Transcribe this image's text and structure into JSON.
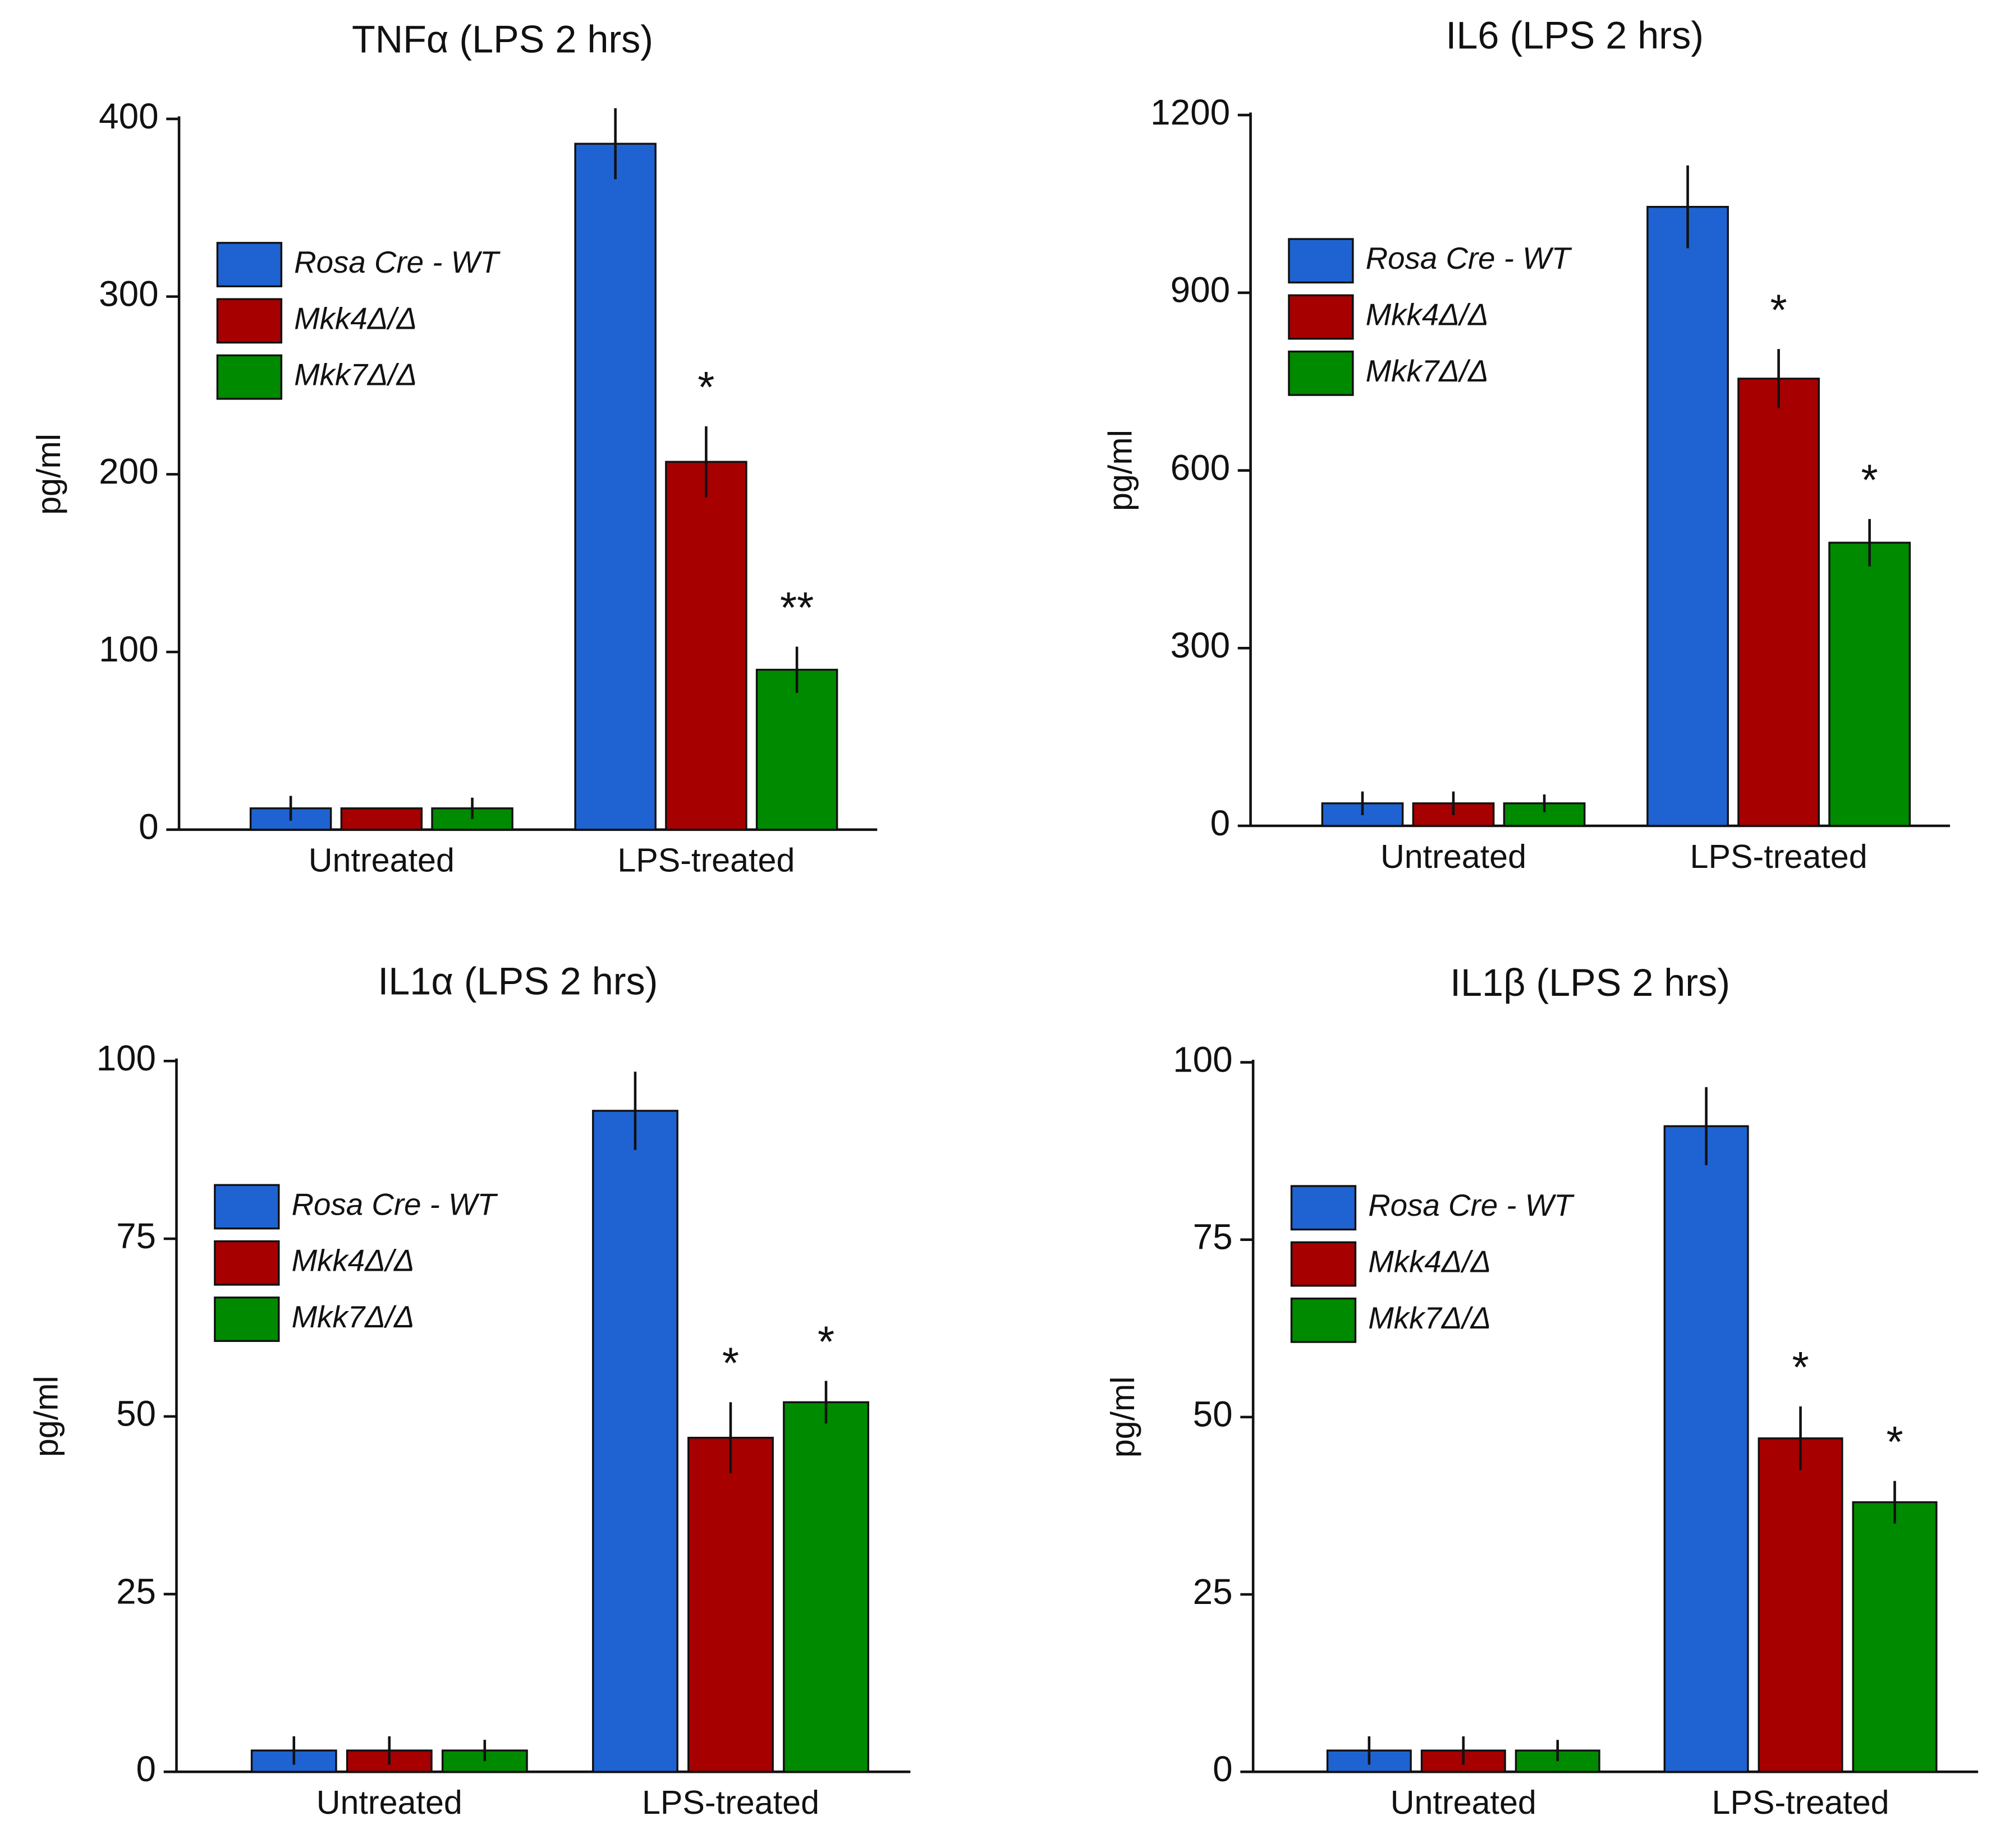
{
  "chart_data": [
    {
      "type": "bar",
      "title": "TNFα (LPS 2 hrs)",
      "ylabel": "pg/ml",
      "categories": [
        "Untreated",
        "LPS-treated"
      ],
      "series": [
        {
          "name": "Rosa Cre - WT",
          "color": "#1f63d2",
          "values": [
            12,
            386
          ],
          "errors": [
            7,
            20
          ],
          "annotations": [
            null,
            null
          ]
        },
        {
          "name": "Mkk4Δ/Δ",
          "color": "#a60000",
          "values": [
            12,
            207
          ],
          "errors": [
            0,
            20
          ],
          "annotations": [
            null,
            "*"
          ]
        },
        {
          "name": "Mkk7Δ/Δ",
          "color": "#008a00",
          "values": [
            12,
            90
          ],
          "errors": [
            6,
            13
          ],
          "annotations": [
            null,
            "**"
          ]
        }
      ],
      "ylim": [
        0,
        400
      ],
      "yticks": [
        0,
        100,
        200,
        300,
        400
      ]
    },
    {
      "type": "bar",
      "title": "IL6 (LPS 2 hrs)",
      "ylabel": "pg/ml",
      "categories": [
        "Untreated",
        "LPS-treated"
      ],
      "series": [
        {
          "name": "Rosa Cre - WT",
          "color": "#1f63d2",
          "values": [
            38,
            1045
          ],
          "errors": [
            20,
            70
          ],
          "annotations": [
            null,
            null
          ]
        },
        {
          "name": "Mkk4Δ/Δ",
          "color": "#a60000",
          "values": [
            38,
            755
          ],
          "errors": [
            20,
            50
          ],
          "annotations": [
            null,
            "*"
          ]
        },
        {
          "name": "Mkk7Δ/Δ",
          "color": "#008a00",
          "values": [
            38,
            478
          ],
          "errors": [
            15,
            40
          ],
          "annotations": [
            null,
            "*"
          ]
        }
      ],
      "ylim": [
        0,
        1200
      ],
      "yticks": [
        0,
        300,
        600,
        900,
        1200
      ]
    },
    {
      "type": "bar",
      "title": "IL1α (LPS 2 hrs)",
      "ylabel": "pg/ml",
      "categories": [
        "Untreated",
        "LPS-treated"
      ],
      "series": [
        {
          "name": "Rosa Cre - WT",
          "color": "#1f63d2",
          "values": [
            3,
            93
          ],
          "errors": [
            2,
            5.5
          ],
          "annotations": [
            null,
            null
          ]
        },
        {
          "name": "Mkk4Δ/Δ",
          "color": "#a60000",
          "values": [
            3,
            47
          ],
          "errors": [
            2,
            5
          ],
          "annotations": [
            null,
            "*"
          ]
        },
        {
          "name": "Mkk7Δ/Δ",
          "color": "#008a00",
          "values": [
            3,
            52
          ],
          "errors": [
            1.5,
            3
          ],
          "annotations": [
            null,
            "*"
          ]
        }
      ],
      "ylim": [
        0,
        100
      ],
      "yticks": [
        0,
        25,
        50,
        75,
        100
      ]
    },
    {
      "type": "bar",
      "title": "IL1β (LPS 2 hrs)",
      "ylabel": "pg/ml",
      "categories": [
        "Untreated",
        "LPS-treated"
      ],
      "series": [
        {
          "name": "Rosa Cre - WT",
          "color": "#1f63d2",
          "values": [
            3,
            91
          ],
          "errors": [
            2,
            5.5
          ],
          "annotations": [
            null,
            null
          ]
        },
        {
          "name": "Mkk4Δ/Δ",
          "color": "#a60000",
          "values": [
            3,
            47
          ],
          "errors": [
            2,
            4.5
          ],
          "annotations": [
            null,
            "*"
          ]
        },
        {
          "name": "Mkk7Δ/Δ",
          "color": "#008a00",
          "values": [
            3,
            38
          ],
          "errors": [
            1.5,
            3
          ],
          "annotations": [
            null,
            "*"
          ]
        }
      ],
      "ylim": [
        0,
        100
      ],
      "yticks": [
        0,
        25,
        50,
        75,
        100
      ]
    }
  ]
}
